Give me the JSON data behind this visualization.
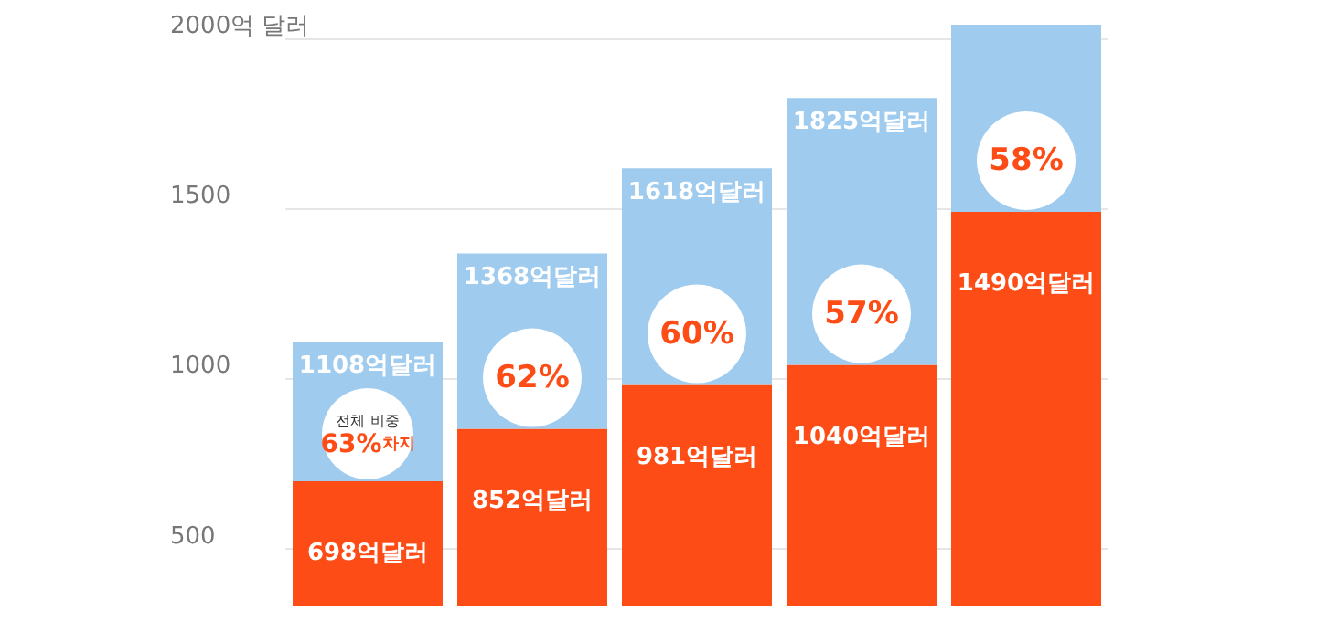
{
  "chart_data": {
    "type": "bar",
    "stacked": true,
    "categories": [
      null,
      null,
      null,
      null,
      null
    ],
    "series": [
      {
        "color": "#fd4c15",
        "values": [
          698,
          852,
          981,
          1040,
          1490
        ],
        "value_labels": [
          "698억달러",
          "852억달러",
          "981억달러",
          "1040억달러",
          "1490억달러"
        ]
      },
      {
        "color": "#9fcbee",
        "values": [
          410,
          516,
          637,
          785,
          550
        ]
      }
    ],
    "totals": [
      "1108억달러",
      "1368억달러",
      "1618억달러",
      "1825억달러",
      null
    ],
    "ylim": [
      330,
      2040
    ],
    "yticks": [
      {
        "value": 2000,
        "label": "2000억 달러"
      },
      1500,
      1000,
      500
    ],
    "grid": "y",
    "tick_labels": "y",
    "annotations": [
      "전체 비중\n63%차지",
      "62%",
      "60%",
      "57%",
      "58%"
    ]
  }
}
